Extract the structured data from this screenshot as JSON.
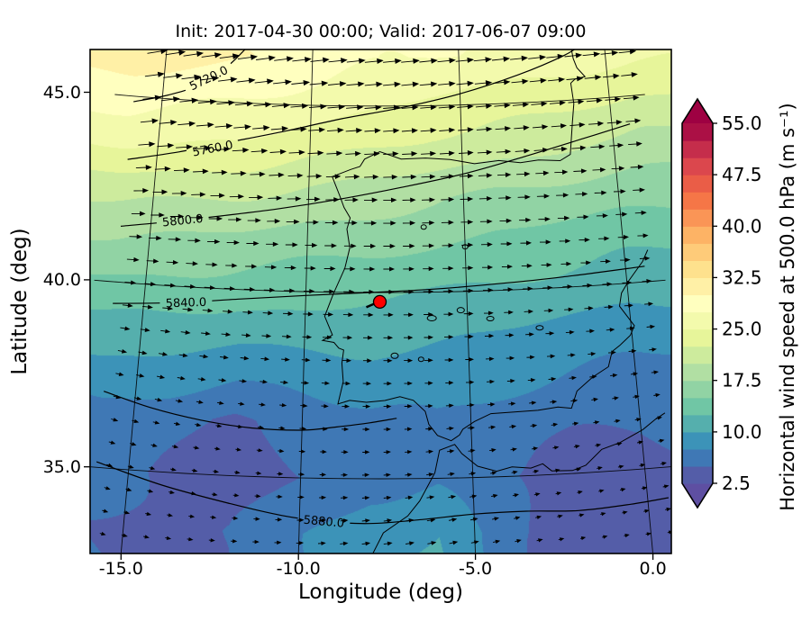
{
  "chart_data": {
    "type": "map-contourf-quiver",
    "title": "Init: 2017-04-30 00:00; Valid: 2017-06-07 09:00",
    "init_time": "2017-04-30 00:00",
    "valid_time": "2017-06-07 09:00",
    "xlabel": "Longitude (deg)",
    "ylabel": "Latitude (deg)",
    "xticks": [
      -15,
      -10,
      -5,
      0
    ],
    "xtick_labels": [
      "-15.0",
      "-10.0",
      "-5.0",
      "0.0"
    ],
    "yticks": [
      35,
      40,
      45
    ],
    "ytick_labels": [
      "35.0",
      "40.0",
      "45.0"
    ],
    "extent": [
      -15.9,
      0.55,
      33.0,
      46.25
    ],
    "projection": {
      "type": "LambertConformal",
      "central_longitude": -7.7,
      "standard_parallels": [
        33,
        45
      ]
    },
    "colorbar": {
      "label": "Horizontal wind speed at 500.0 hPa (m s⁻¹)",
      "ticks": [
        2.5,
        10.0,
        17.5,
        25.0,
        32.5,
        40.0,
        47.5,
        55.0
      ],
      "tick_labels": [
        "2.5",
        "10.0",
        "17.5",
        "25.0",
        "32.5",
        "40.0",
        "47.5",
        "55.0"
      ],
      "levels": {
        "min": 2.5,
        "max": 55.0,
        "step": 2.5
      },
      "extend": "both",
      "colormap": "Spectral_r",
      "colors": [
        "#5e4fa2",
        "#3288bd",
        "#66c2a5",
        "#abdda4",
        "#e6f598",
        "#ffffbf",
        "#fee08b",
        "#fdae61",
        "#f46d43",
        "#d53e4f",
        "#9e0142"
      ]
    },
    "wind_field": {
      "units": "m s-1",
      "lons": [
        -16,
        -14,
        -12,
        -10,
        -8,
        -6,
        -4,
        -2,
        0,
        1
      ],
      "lats": [
        33.5,
        35,
        36.5,
        38,
        39.5,
        41,
        42.5,
        44,
        46.3
      ],
      "speed": [
        [
          5.0,
          4.5,
          5.0,
          7.0,
          9.5,
          10.0,
          6.0,
          3.5,
          4.0,
          4.5
        ],
        [
          5.5,
          4.5,
          4.0,
          5.0,
          6.5,
          7.0,
          5.0,
          4.0,
          4.5,
          5.0
        ],
        [
          7.0,
          6.0,
          4.5,
          6.0,
          7.0,
          7.5,
          6.5,
          5.5,
          5.0,
          5.0
        ],
        [
          10.0,
          9.5,
          9.0,
          9.0,
          9.5,
          9.0,
          8.5,
          8.0,
          7.5,
          7.5
        ],
        [
          13.5,
          13.0,
          12.5,
          12.5,
          12.0,
          11.5,
          11.0,
          10.5,
          10.0,
          10.0
        ],
        [
          17.0,
          16.5,
          16.0,
          15.5,
          15.0,
          14.5,
          14.0,
          13.5,
          13.0,
          13.0
        ],
        [
          21.0,
          20.5,
          20.0,
          19.0,
          18.5,
          18.0,
          17.0,
          16.5,
          16.0,
          16.0
        ],
        [
          26.0,
          25.5,
          25.0,
          24.0,
          23.0,
          22.0,
          21.5,
          21.0,
          20.5,
          20.0
        ],
        [
          32.0,
          31.0,
          30.0,
          29.0,
          28.0,
          27.5,
          27.0,
          26.5,
          26.0,
          26.0
        ]
      ],
      "dir_deg": [
        [
          -12,
          -8,
          0,
          5,
          8,
          10,
          12,
          10,
          8,
          8
        ],
        [
          -15,
          -10,
          -5,
          0,
          5,
          8,
          10,
          10,
          8,
          8
        ],
        [
          -12,
          -10,
          -6,
          -3,
          0,
          3,
          5,
          6,
          6,
          6
        ],
        [
          -8,
          -6,
          -4,
          -2,
          0,
          0,
          0,
          2,
          2,
          2
        ],
        [
          -2,
          -2,
          -1,
          0,
          0,
          0,
          0,
          0,
          0,
          0
        ],
        [
          2,
          2,
          2,
          1,
          0,
          0,
          -1,
          -2,
          -2,
          -2
        ],
        [
          6,
          5,
          4,
          3,
          2,
          1,
          0,
          -1,
          -2,
          -2
        ],
        [
          10,
          8,
          7,
          5,
          4,
          3,
          2,
          1,
          0,
          0
        ],
        [
          14,
          12,
          10,
          8,
          6,
          5,
          4,
          3,
          2,
          2
        ]
      ]
    },
    "quiver_grid": {
      "lon_start": -15.65,
      "lon_step": 0.62,
      "cols": 27,
      "lat_start": 33.25,
      "lat_step": 0.615,
      "rows": 22
    },
    "geopotential": {
      "units": "m",
      "contour_interval": 40,
      "contours": [
        {
          "label": "5720.0",
          "labeled": true,
          "label_at": [
            -13.5,
            45.62
          ],
          "points": [
            [
              -15.95,
              44.85
            ],
            [
              -14.8,
              45.1
            ],
            [
              -13.8,
              45.42
            ],
            [
              -12.9,
              45.95
            ],
            [
              -12.3,
              46.45
            ]
          ]
        },
        {
          "label": "5760.0",
          "labeled": true,
          "label_at": [
            -13.2,
            43.75
          ],
          "points": [
            [
              -15.95,
              43.3
            ],
            [
              -14.3,
              43.6
            ],
            [
              -12.6,
              43.95
            ],
            [
              -10.8,
              44.3
            ],
            [
              -9,
              44.65
            ],
            [
              -7,
              44.95
            ],
            [
              -5,
              45.3
            ],
            [
              -3,
              45.75
            ],
            [
              -1.4,
              46.2
            ],
            [
              -0.7,
              46.5
            ]
          ]
        },
        {
          "label": "5800.0",
          "labeled": true,
          "label_at": [
            -14.0,
            41.78
          ],
          "points": [
            [
              -15.95,
              41.5
            ],
            [
              -14.4,
              41.72
            ],
            [
              -12.8,
              41.95
            ],
            [
              -11,
              42.2
            ],
            [
              -9,
              42.5
            ],
            [
              -7,
              42.82
            ],
            [
              -5,
              43.15
            ],
            [
              -3,
              43.55
            ],
            [
              -1,
              43.95
            ],
            [
              0.6,
              44.25
            ]
          ]
        },
        {
          "label": "5840.0",
          "labeled": true,
          "label_at": [
            -13.7,
            39.58
          ],
          "points": [
            [
              -15.95,
              39.42
            ],
            [
              -14,
              39.56
            ],
            [
              -12,
              39.75
            ],
            [
              -10,
              39.9
            ],
            [
              -8,
              40.0
            ],
            [
              -6,
              40.08
            ],
            [
              -4,
              40.18
            ],
            [
              -2,
              40.28
            ],
            [
              0.6,
              40.42
            ]
          ]
        },
        {
          "label": "5880.0",
          "labeled": false,
          "label_at": null,
          "points": [
            [
              -15.95,
              37.05
            ],
            [
              -14.5,
              36.7
            ],
            [
              -13,
              36.45
            ],
            [
              -11.5,
              36.3
            ],
            [
              -10,
              36.28
            ],
            [
              -9,
              36.38
            ],
            [
              -8,
              36.5
            ],
            [
              -7.2,
              36.62
            ]
          ]
        },
        {
          "label": "5880.0",
          "labeled": true,
          "label_at": [
            -9.3,
            33.85
          ],
          "points": [
            [
              -15.95,
              35.15
            ],
            [
              -14,
              34.65
            ],
            [
              -12,
              34.25
            ],
            [
              -10.5,
              33.98
            ],
            [
              -9.3,
              33.85
            ],
            [
              -8,
              33.8
            ],
            [
              -6.5,
              33.9
            ],
            [
              -5,
              34.02
            ],
            [
              -3.5,
              34.05
            ],
            [
              -2,
              34.0
            ],
            [
              -0.5,
              34.08
            ],
            [
              0.6,
              34.18
            ]
          ]
        }
      ]
    },
    "marker": {
      "lon": -7.7,
      "lat": 39.75,
      "color": "#ff0000"
    },
    "coastlines": [
      [
        [
          -1.15,
          46.45
        ],
        [
          -1.1,
          46.1
        ],
        [
          -1.0,
          45.85
        ],
        [
          -0.75,
          45.6
        ],
        [
          -1.1,
          45.55
        ],
        [
          -1.25,
          45.45
        ],
        [
          -1.2,
          44.9
        ],
        [
          -1.3,
          44.4
        ],
        [
          -1.45,
          43.55
        ],
        [
          -1.8,
          43.4
        ],
        [
          -2.5,
          43.45
        ],
        [
          -3.1,
          43.4
        ],
        [
          -3.8,
          43.48
        ],
        [
          -4.6,
          43.42
        ],
        [
          -5.4,
          43.55
        ],
        [
          -6.2,
          43.6
        ],
        [
          -7.0,
          43.58
        ],
        [
          -7.7,
          43.78
        ],
        [
          -8.2,
          43.58
        ],
        [
          -8.35,
          43.38
        ],
        [
          -8.65,
          43.3
        ],
        [
          -9.25,
          43.1
        ],
        [
          -9.0,
          42.6
        ],
        [
          -8.85,
          42.28
        ],
        [
          -8.65,
          42.0
        ],
        [
          -8.75,
          41.7
        ],
        [
          -8.65,
          41.2
        ],
        [
          -8.8,
          40.65
        ],
        [
          -9.15,
          39.95
        ],
        [
          -9.4,
          39.35
        ],
        [
          -9.15,
          38.85
        ],
        [
          -9.45,
          38.7
        ],
        [
          -9.1,
          38.65
        ],
        [
          -8.95,
          38.5
        ],
        [
          -8.8,
          38.45
        ],
        [
          -8.85,
          38.1
        ],
        [
          -8.8,
          37.6
        ],
        [
          -8.95,
          37.0
        ],
        [
          -8.6,
          37.1
        ],
        [
          -8.1,
          37.05
        ],
        [
          -7.55,
          37.1
        ],
        [
          -7.1,
          37.2
        ],
        [
          -6.7,
          37.1
        ],
        [
          -6.35,
          36.8
        ],
        [
          -6.25,
          36.45
        ],
        [
          -6.0,
          36.15
        ],
        [
          -5.6,
          36.0
        ],
        [
          -5.35,
          36.15
        ],
        [
          -5.25,
          36.3
        ],
        [
          -4.9,
          36.5
        ],
        [
          -4.4,
          36.7
        ],
        [
          -3.7,
          36.72
        ],
        [
          -3.0,
          36.74
        ],
        [
          -2.4,
          36.8
        ],
        [
          -2.0,
          36.75
        ],
        [
          -1.8,
          37.2
        ],
        [
          -1.3,
          37.55
        ],
        [
          -0.8,
          37.8
        ],
        [
          -0.65,
          38.2
        ],
        [
          -0.4,
          38.35
        ],
        [
          -0.05,
          38.6
        ],
        [
          0.1,
          38.85
        ],
        [
          -0.3,
          39.4
        ],
        [
          -0.2,
          39.75
        ],
        [
          0.05,
          40.05
        ],
        [
          0.55,
          40.55
        ],
        [
          0.75,
          40.85
        ]
      ],
      [
        [
          -7.95,
          32.9
        ],
        [
          -7.6,
          33.55
        ],
        [
          -6.9,
          34.0
        ],
        [
          -6.55,
          34.4
        ],
        [
          -6.1,
          35.15
        ],
        [
          -5.95,
          35.75
        ],
        [
          -5.5,
          35.9
        ],
        [
          -5.3,
          35.65
        ],
        [
          -4.85,
          35.3
        ],
        [
          -4.3,
          35.15
        ],
        [
          -3.85,
          35.25
        ],
        [
          -3.3,
          35.2
        ],
        [
          -2.95,
          35.3
        ],
        [
          -2.7,
          35.1
        ],
        [
          -2.1,
          35.08
        ],
        [
          -1.7,
          35.2
        ],
        [
          -1.2,
          35.6
        ],
        [
          -0.65,
          35.75
        ],
        [
          -0.3,
          35.9
        ],
        [
          0.05,
          36.05
        ],
        [
          0.45,
          36.3
        ],
        [
          0.75,
          36.45
        ]
      ]
    ],
    "water_bodies": [
      [
        -6.1,
        39.3,
        5,
        3
      ],
      [
        -5.2,
        39.5,
        4,
        3
      ],
      [
        -4.3,
        39.25,
        4,
        2.5
      ],
      [
        -7.25,
        38.3,
        4,
        3
      ],
      [
        -6.45,
        38.2,
        3,
        2.5
      ],
      [
        -2.8,
        38.95,
        4,
        2.5
      ],
      [
        -5.0,
        41.2,
        3,
        2.5
      ],
      [
        -6.3,
        41.75,
        3,
        2.5
      ]
    ]
  }
}
